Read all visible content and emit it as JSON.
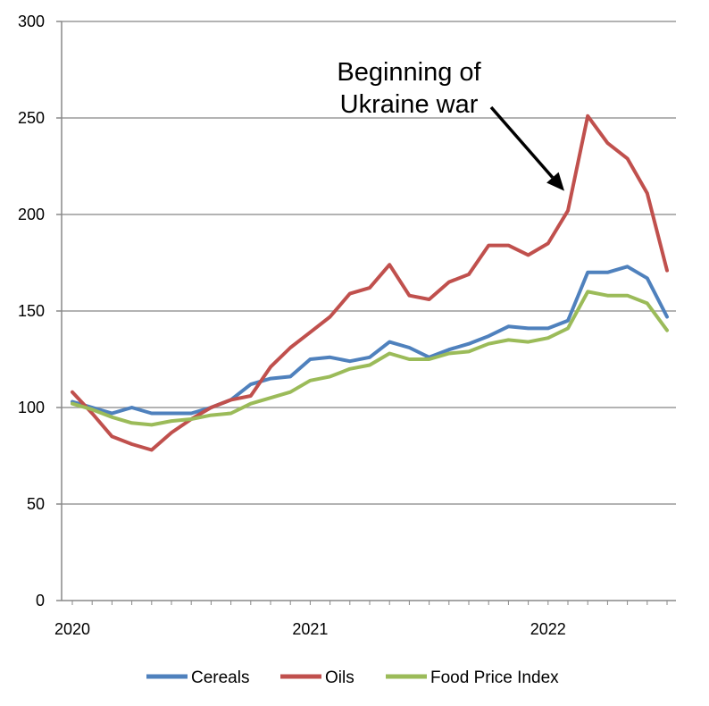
{
  "chart_data": {
    "type": "line",
    "title": "",
    "xlabel": "",
    "ylabel": "",
    "ylim": [
      0,
      300
    ],
    "yticks": [
      0,
      50,
      100,
      150,
      200,
      250,
      300
    ],
    "xtick_labels": [
      {
        "label": "2020",
        "index": 0
      },
      {
        "label": "2021",
        "index": 12
      },
      {
        "label": "2022",
        "index": 24
      }
    ],
    "grid": "horizontal",
    "legend_position": "bottom",
    "series": [
      {
        "name": "Cereals",
        "color": "#4f81bd",
        "values": [
          103,
          100,
          97,
          100,
          97,
          97,
          97,
          100,
          104,
          112,
          115,
          116,
          125,
          126,
          124,
          126,
          134,
          131,
          126,
          130,
          133,
          137,
          142,
          141,
          141,
          145,
          170,
          170,
          173,
          167,
          147
        ]
      },
      {
        "name": "Oils",
        "color": "#c0504d",
        "values": [
          108,
          97,
          85,
          81,
          78,
          87,
          94,
          100,
          104,
          106,
          121,
          131,
          139,
          147,
          159,
          162,
          174,
          158,
          156,
          165,
          169,
          184,
          184,
          179,
          185,
          202,
          251,
          237,
          229,
          211,
          171
        ]
      },
      {
        "name": "Food Price Index",
        "color": "#9bbb59",
        "values": [
          102,
          99,
          95,
          92,
          91,
          93,
          94,
          96,
          97,
          102,
          105,
          108,
          114,
          116,
          120,
          122,
          128,
          125,
          125,
          128,
          129,
          133,
          135,
          134,
          136,
          141,
          160,
          158,
          158,
          154,
          140
        ]
      }
    ],
    "annotations": [
      {
        "lines": [
          "Beginning of",
          "Ukraine war"
        ],
        "arrow_to_index": 25,
        "arrow_to_value": 215
      }
    ]
  }
}
